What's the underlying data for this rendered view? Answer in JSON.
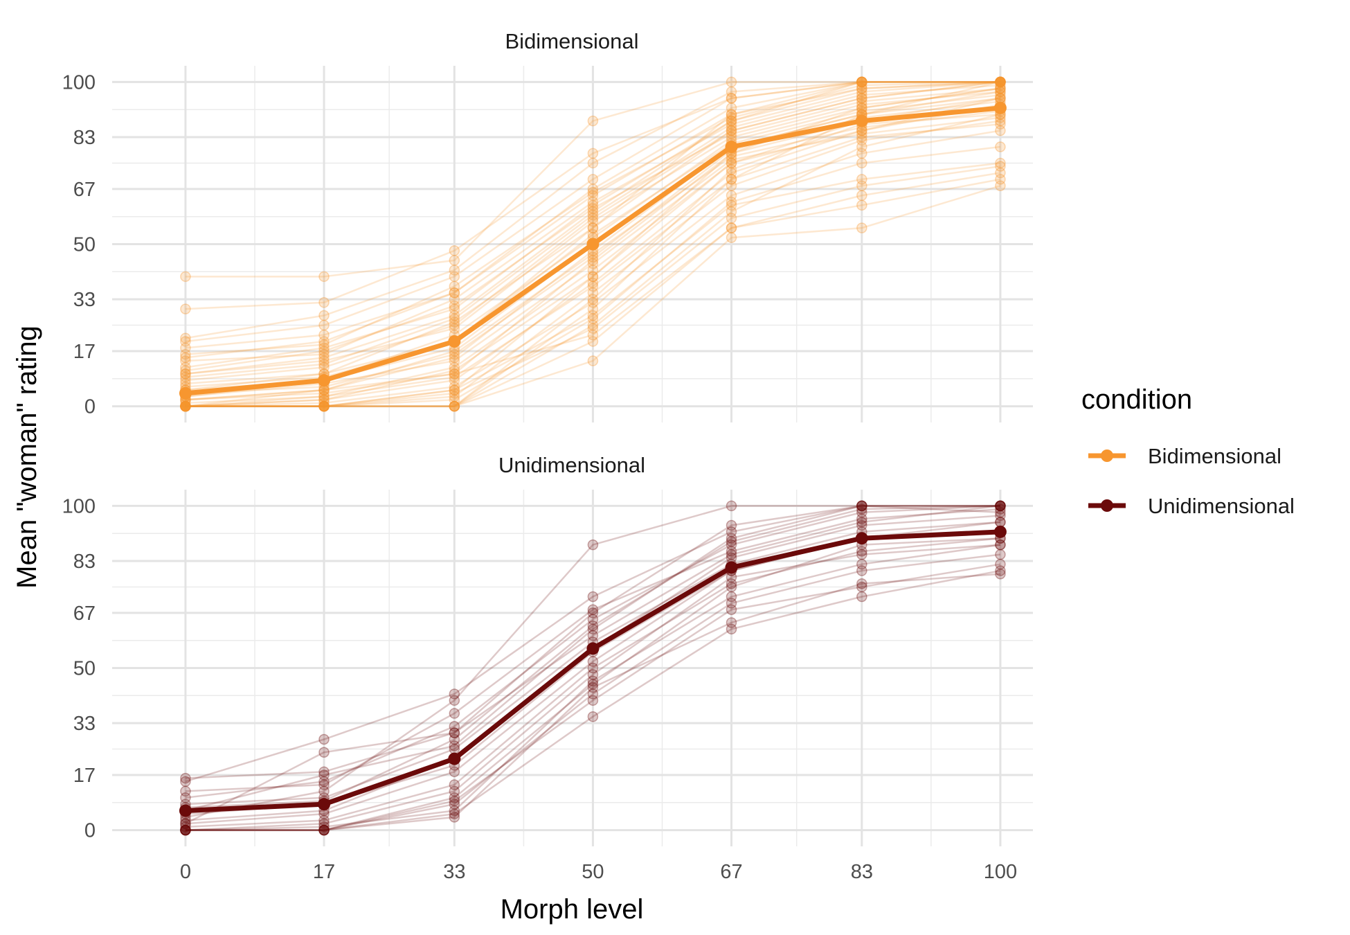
{
  "chart_data": {
    "type": "line",
    "xlabel": "Morph level",
    "ylabel": "Mean \"woman\" rating",
    "x_ticks": [
      0,
      17,
      33,
      50,
      67,
      83,
      100
    ],
    "y_ticks": [
      0,
      17,
      33,
      50,
      67,
      83,
      100
    ],
    "xlim": [
      -9,
      104
    ],
    "ylim": [
      -5,
      105
    ],
    "grid": true,
    "legend": {
      "title": "condition",
      "position": "right",
      "entries": [
        "Bidimensional",
        "Unidimensional"
      ]
    },
    "colors": {
      "Bidimensional": "#f7962f",
      "Unidimensional": "#6b0a0a"
    },
    "panels": [
      {
        "strip": "Bidimensional",
        "mean": {
          "name": "Bidimensional",
          "x": [
            0,
            17,
            33,
            50,
            67,
            83,
            100
          ],
          "y": [
            4,
            8,
            20,
            50,
            80,
            88,
            92
          ]
        },
        "individual_lines": [
          [
            0,
            0,
            0,
            30,
            70,
            90,
            100
          ],
          [
            0,
            0,
            5,
            40,
            75,
            85,
            95
          ],
          [
            2,
            5,
            10,
            45,
            78,
            88,
            95
          ],
          [
            5,
            10,
            20,
            55,
            85,
            95,
            100
          ],
          [
            10,
            15,
            28,
            60,
            88,
            100,
            100
          ],
          [
            0,
            5,
            15,
            48,
            80,
            90,
            97
          ],
          [
            3,
            8,
            22,
            52,
            82,
            92,
            98
          ],
          [
            15,
            20,
            35,
            65,
            90,
            100,
            100
          ],
          [
            0,
            0,
            0,
            25,
            60,
            80,
            90
          ],
          [
            8,
            12,
            25,
            58,
            85,
            95,
            100
          ],
          [
            20,
            25,
            40,
            70,
            95,
            100,
            100
          ],
          [
            0,
            2,
            8,
            38,
            72,
            85,
            93
          ],
          [
            5,
            8,
            18,
            50,
            80,
            90,
            95
          ],
          [
            12,
            18,
            30,
            62,
            88,
            98,
            100
          ],
          [
            0,
            0,
            3,
            35,
            68,
            82,
            88
          ],
          [
            40,
            40,
            45,
            88,
            100,
            100,
            100
          ],
          [
            30,
            32,
            48,
            78,
            95,
            100,
            100
          ],
          [
            0,
            0,
            0,
            14,
            52,
            55,
            68
          ],
          [
            2,
            4,
            10,
            22,
            55,
            65,
            72
          ],
          [
            0,
            0,
            5,
            28,
            62,
            70,
            75
          ],
          [
            7,
            10,
            26,
            55,
            90,
            98,
            100
          ],
          [
            0,
            3,
            12,
            42,
            75,
            88,
            92
          ],
          [
            4,
            6,
            16,
            46,
            79,
            89,
            94
          ],
          [
            18,
            22,
            35,
            67,
            92,
            100,
            100
          ],
          [
            0,
            1,
            6,
            32,
            65,
            78,
            85
          ],
          [
            10,
            14,
            24,
            57,
            83,
            93,
            97
          ],
          [
            6,
            9,
            20,
            53,
            81,
            91,
            96
          ],
          [
            0,
            0,
            2,
            27,
            63,
            75,
            80
          ],
          [
            14,
            16,
            33,
            63,
            87,
            97,
            100
          ],
          [
            1,
            3,
            9,
            37,
            70,
            83,
            87
          ],
          [
            21,
            28,
            42,
            75,
            97,
            100,
            100
          ],
          [
            0,
            0,
            0,
            33,
            73,
            87,
            90
          ],
          [
            9,
            13,
            27,
            59,
            86,
            96,
            99
          ],
          [
            3,
            7,
            14,
            44,
            76,
            84,
            89
          ],
          [
            0,
            2,
            11,
            40,
            78,
            92,
            98
          ],
          [
            16,
            19,
            37,
            66,
            89,
            99,
            100
          ],
          [
            0,
            0,
            4,
            24,
            58,
            68,
            74
          ],
          [
            11,
            17,
            31,
            61,
            84,
            94,
            98
          ],
          [
            2,
            5,
            17,
            47,
            77,
            86,
            91
          ],
          [
            0,
            0,
            0,
            20,
            55,
            62,
            70
          ]
        ]
      },
      {
        "strip": "Unidimensional",
        "mean": {
          "name": "Unidimensional",
          "x": [
            0,
            17,
            33,
            50,
            67,
            83,
            100
          ],
          "y": [
            6,
            8,
            22,
            56,
            81,
            90,
            92
          ]
        },
        "individual_lines": [
          [
            0,
            0,
            5,
            35,
            62,
            72,
            80
          ],
          [
            0,
            0,
            10,
            45,
            75,
            88,
            90
          ],
          [
            5,
            8,
            20,
            55,
            80,
            90,
            95
          ],
          [
            16,
            18,
            30,
            60,
            85,
            95,
            100
          ],
          [
            15,
            28,
            42,
            72,
            92,
            100,
            100
          ],
          [
            0,
            2,
            12,
            48,
            78,
            85,
            88
          ],
          [
            8,
            10,
            25,
            58,
            82,
            92,
            95
          ],
          [
            2,
            5,
            18,
            52,
            80,
            90,
            92
          ],
          [
            0,
            0,
            8,
            42,
            70,
            80,
            85
          ],
          [
            10,
            15,
            32,
            65,
            88,
            98,
            100
          ],
          [
            0,
            1,
            6,
            46,
            72,
            82,
            88
          ],
          [
            4,
            12,
            40,
            88,
            100,
            100,
            100
          ],
          [
            1,
            3,
            14,
            50,
            76,
            86,
            90
          ],
          [
            6,
            17,
            26,
            62,
            90,
            100,
            98
          ],
          [
            0,
            0,
            4,
            44,
            64,
            76,
            79
          ],
          [
            3,
            6,
            22,
            56,
            84,
            94,
            97
          ],
          [
            12,
            14,
            36,
            68,
            86,
            96,
            99
          ],
          [
            0,
            0,
            9,
            40,
            68,
            75,
            82
          ],
          [
            7,
            9,
            28,
            63,
            89,
            99,
            100
          ],
          [
            2,
            24,
            30,
            67,
            94,
            100,
            100
          ]
        ]
      }
    ]
  }
}
